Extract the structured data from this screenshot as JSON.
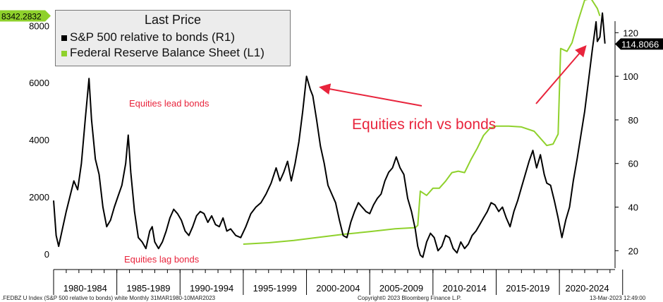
{
  "chart_data": {
    "type": "line",
    "legend": {
      "title": "Last Price",
      "placement": "top-left",
      "entries": [
        {
          "label": "S&P 500 relative to bonds  (R1)",
          "color": "#000000"
        },
        {
          "label": "Federal Reserve Balance Sheet  (L1)",
          "color": "#8fd12c"
        }
      ]
    },
    "left_axis": {
      "ticks": [
        "0",
        "2000",
        "4000",
        "6000",
        "8000"
      ],
      "ylim": [
        -500,
        8900
      ]
    },
    "right_axis": {
      "ticks": [
        "20",
        "40",
        "60",
        "80",
        "100",
        "120"
      ],
      "ylim": [
        12,
        135
      ]
    },
    "x_axis": {
      "categories": [
        "1980-1984",
        "1985-1989",
        "1990-1994",
        "1995-1999",
        "2000-2004",
        "2005-2009",
        "2010-2014",
        "2015-2019",
        "2020-2024"
      ],
      "xlim": [
        1980.0,
        2024.4
      ]
    },
    "last_values": {
      "left": "8342.2832",
      "right": "114.8066"
    },
    "annotations": [
      {
        "text": "Equities lead bonds",
        "color": "#e8243c"
      },
      {
        "text": "Equities lag bonds",
        "color": "#e8243c"
      },
      {
        "text": "Equities rich vs bonds",
        "color": "#e8243c"
      }
    ],
    "series": [
      {
        "name": "S&P 500 relative to bonds  (R1)",
        "axis": "right",
        "color": "#000000",
        "points": [
          [
            1980.0,
            43
          ],
          [
            1980.2,
            27
          ],
          [
            1980.4,
            22
          ],
          [
            1980.7,
            30
          ],
          [
            1981.0,
            38
          ],
          [
            1981.3,
            45
          ],
          [
            1981.6,
            52
          ],
          [
            1981.9,
            48
          ],
          [
            1982.2,
            60
          ],
          [
            1982.5,
            80
          ],
          [
            1982.8,
            99
          ],
          [
            1983.0,
            80
          ],
          [
            1983.3,
            62
          ],
          [
            1983.6,
            55
          ],
          [
            1983.9,
            40
          ],
          [
            1984.2,
            31
          ],
          [
            1984.5,
            34
          ],
          [
            1984.8,
            40
          ],
          [
            1985.1,
            45
          ],
          [
            1985.4,
            50
          ],
          [
            1985.7,
            60
          ],
          [
            1985.9,
            73
          ],
          [
            1986.1,
            56
          ],
          [
            1986.4,
            38
          ],
          [
            1986.7,
            26
          ],
          [
            1987.0,
            24
          ],
          [
            1987.3,
            21
          ],
          [
            1987.6,
            29
          ],
          [
            1987.8,
            31
          ],
          [
            1988.0,
            24
          ],
          [
            1988.3,
            21
          ],
          [
            1988.6,
            24
          ],
          [
            1988.9,
            29
          ],
          [
            1989.2,
            35
          ],
          [
            1989.5,
            39
          ],
          [
            1989.8,
            37
          ],
          [
            1990.1,
            34
          ],
          [
            1990.4,
            29
          ],
          [
            1990.7,
            27
          ],
          [
            1991.0,
            31
          ],
          [
            1991.3,
            36
          ],
          [
            1991.6,
            38
          ],
          [
            1991.9,
            37
          ],
          [
            1992.2,
            33
          ],
          [
            1992.5,
            36
          ],
          [
            1992.8,
            32
          ],
          [
            1993.1,
            31
          ],
          [
            1993.4,
            35
          ],
          [
            1993.7,
            29
          ],
          [
            1994.0,
            30
          ],
          [
            1994.4,
            27
          ],
          [
            1994.8,
            26
          ],
          [
            1995.2,
            31
          ],
          [
            1995.6,
            37
          ],
          [
            1996.0,
            40
          ],
          [
            1996.4,
            42
          ],
          [
            1996.8,
            46
          ],
          [
            1997.2,
            51
          ],
          [
            1997.6,
            58
          ],
          [
            1997.9,
            52
          ],
          [
            1998.2,
            56
          ],
          [
            1998.5,
            61
          ],
          [
            1998.8,
            52
          ],
          [
            1999.1,
            60
          ],
          [
            1999.4,
            70
          ],
          [
            1999.7,
            84
          ],
          [
            2000.0,
            100
          ],
          [
            2000.3,
            94
          ],
          [
            2000.5,
            91
          ],
          [
            2000.8,
            80
          ],
          [
            2001.1,
            68
          ],
          [
            2001.4,
            60
          ],
          [
            2001.7,
            50
          ],
          [
            2002.0,
            46
          ],
          [
            2002.3,
            42
          ],
          [
            2002.6,
            34
          ],
          [
            2002.9,
            27
          ],
          [
            2003.2,
            26
          ],
          [
            2003.5,
            33
          ],
          [
            2003.8,
            38
          ],
          [
            2004.1,
            42
          ],
          [
            2004.4,
            40
          ],
          [
            2004.7,
            38
          ],
          [
            2005.0,
            37
          ],
          [
            2005.3,
            41
          ],
          [
            2005.6,
            44
          ],
          [
            2005.9,
            46
          ],
          [
            2006.2,
            52
          ],
          [
            2006.5,
            56
          ],
          [
            2006.8,
            58
          ],
          [
            2007.1,
            63
          ],
          [
            2007.4,
            58
          ],
          [
            2007.7,
            55
          ],
          [
            2008.0,
            44
          ],
          [
            2008.3,
            38
          ],
          [
            2008.6,
            30
          ],
          [
            2008.8,
            22
          ],
          [
            2009.0,
            18
          ],
          [
            2009.2,
            17
          ],
          [
            2009.5,
            24
          ],
          [
            2009.8,
            28
          ],
          [
            2010.1,
            26
          ],
          [
            2010.4,
            20
          ],
          [
            2010.7,
            22
          ],
          [
            2011.0,
            27
          ],
          [
            2011.3,
            26
          ],
          [
            2011.6,
            21
          ],
          [
            2011.9,
            19
          ],
          [
            2012.2,
            24
          ],
          [
            2012.5,
            21
          ],
          [
            2012.8,
            23
          ],
          [
            2013.1,
            27
          ],
          [
            2013.4,
            29
          ],
          [
            2013.7,
            32
          ],
          [
            2014.0,
            35
          ],
          [
            2014.3,
            38
          ],
          [
            2014.6,
            42
          ],
          [
            2014.9,
            41
          ],
          [
            2015.2,
            38
          ],
          [
            2015.5,
            40
          ],
          [
            2015.8,
            35
          ],
          [
            2016.1,
            31
          ],
          [
            2016.4,
            38
          ],
          [
            2016.7,
            43
          ],
          [
            2017.0,
            49
          ],
          [
            2017.3,
            55
          ],
          [
            2017.6,
            61
          ],
          [
            2017.9,
            66
          ],
          [
            2018.2,
            58
          ],
          [
            2018.5,
            64
          ],
          [
            2018.8,
            55
          ],
          [
            2019.0,
            51
          ],
          [
            2019.3,
            50
          ],
          [
            2019.6,
            43
          ],
          [
            2019.9,
            35
          ],
          [
            2020.2,
            26
          ],
          [
            2020.5,
            34
          ],
          [
            2020.8,
            40
          ],
          [
            2021.1,
            52
          ],
          [
            2021.4,
            62
          ],
          [
            2021.7,
            73
          ],
          [
            2022.0,
            84
          ],
          [
            2022.3,
            98
          ],
          [
            2022.6,
            112
          ],
          [
            2022.9,
            125
          ],
          [
            2023.0,
            116
          ],
          [
            2023.2,
            118
          ],
          [
            2023.4,
            129
          ],
          [
            2023.6,
            115
          ]
        ]
      },
      {
        "name": "Federal Reserve Balance Sheet  (L1)",
        "axis": "left",
        "color": "#8fd12c",
        "points": [
          [
            1995.0,
            340
          ],
          [
            1997.0,
            390
          ],
          [
            1999.0,
            470
          ],
          [
            2001.0,
            580
          ],
          [
            2003.0,
            690
          ],
          [
            2005.0,
            780
          ],
          [
            2007.0,
            880
          ],
          [
            2008.6,
            920
          ],
          [
            2008.8,
            1000
          ],
          [
            2009.0,
            2200
          ],
          [
            2009.5,
            2050
          ],
          [
            2010.0,
            2300
          ],
          [
            2010.5,
            2300
          ],
          [
            2011.0,
            2550
          ],
          [
            2011.5,
            2850
          ],
          [
            2012.0,
            2900
          ],
          [
            2012.5,
            2850
          ],
          [
            2013.0,
            3300
          ],
          [
            2013.5,
            3700
          ],
          [
            2014.0,
            4150
          ],
          [
            2014.5,
            4400
          ],
          [
            2015.0,
            4480
          ],
          [
            2016.0,
            4480
          ],
          [
            2017.0,
            4450
          ],
          [
            2018.0,
            4300
          ],
          [
            2019.0,
            3800
          ],
          [
            2019.5,
            3850
          ],
          [
            2019.9,
            4200
          ],
          [
            2020.1,
            7200
          ],
          [
            2020.6,
            7100
          ],
          [
            2021.0,
            7400
          ],
          [
            2021.5,
            8200
          ],
          [
            2022.0,
            8900
          ],
          [
            2022.5,
            8950
          ],
          [
            2023.0,
            8600
          ],
          [
            2023.2,
            8342
          ]
        ]
      }
    ]
  },
  "footer": {
    "left": ".FEDBZ U Index (S&P 500 relative to bonds) white  Monthly 31MAR1980-10MAR2023",
    "center": "Copyright© 2023 Bloomberg Finance L.P.",
    "right": "13-Mar-2023 12:49:00"
  }
}
